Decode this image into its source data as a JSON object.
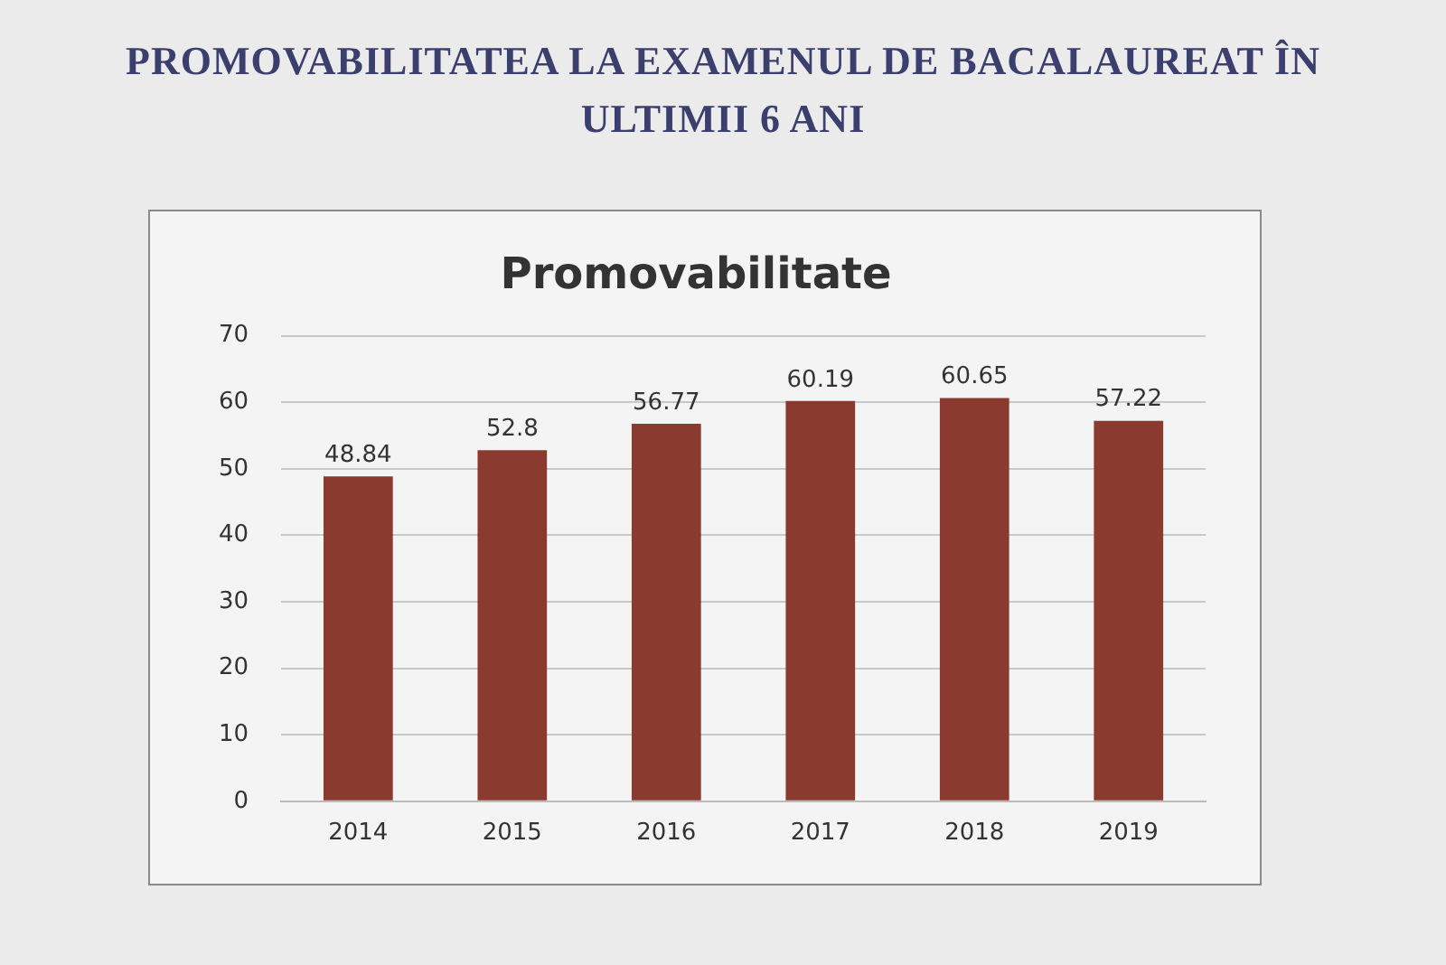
{
  "chart_data": {
    "type": "bar",
    "title": "PROMOVABILITATEA LA EXAMENUL DE BACALAUREAT ÎN ULTIMII 6 ANI",
    "subtitle": "Promovabilitate",
    "categories": [
      "2014",
      "2015",
      "2016",
      "2017",
      "2018",
      "2019"
    ],
    "values": [
      48.84,
      52.8,
      56.77,
      60.19,
      60.65,
      57.22
    ],
    "color": "#8b3a30",
    "ylim": [
      0,
      70
    ],
    "yticks": [
      0,
      10,
      20,
      30,
      40,
      50,
      60,
      70
    ],
    "grid": "y",
    "legend": false,
    "data_labels": true
  }
}
